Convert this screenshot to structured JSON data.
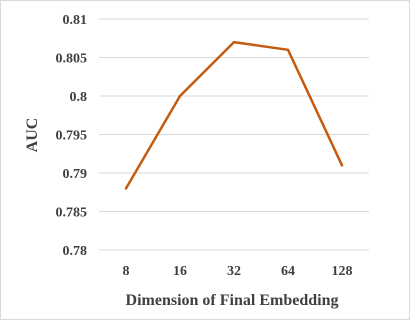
{
  "chart_data": {
    "type": "line",
    "categories": [
      "8",
      "16",
      "32",
      "64",
      "128"
    ],
    "series": [
      {
        "values": [
          0.788,
          0.8,
          0.807,
          0.806,
          0.791
        ]
      }
    ],
    "xlabel": "Dimension of Final Embedding",
    "ylabel": "AUC",
    "ylim": [
      0.78,
      0.81
    ],
    "yticks": [
      "0.78",
      "0.785",
      "0.79",
      "0.795",
      "0.8",
      "0.805",
      "0.81"
    ],
    "grid": true,
    "line_color": "#c55a11"
  }
}
